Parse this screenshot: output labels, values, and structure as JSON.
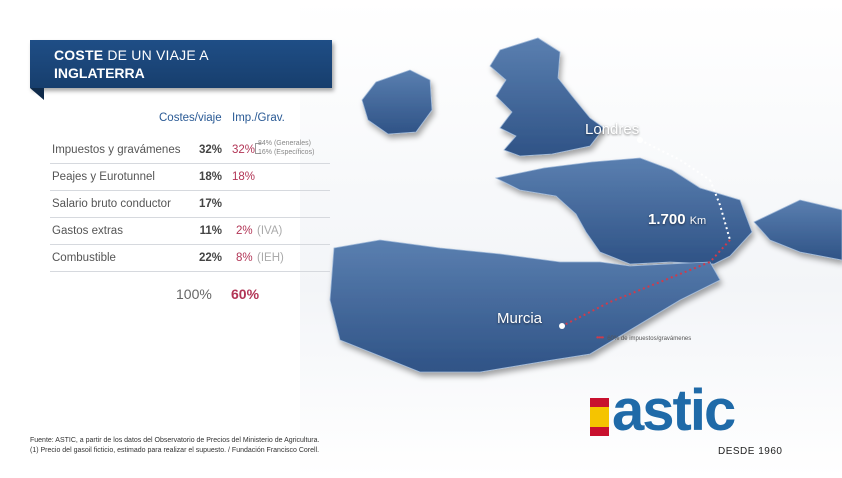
{
  "title": {
    "line1_bold": "COSTE",
    "line1_rest": " DE UN VIAJE A",
    "line2": "INGLATERRA"
  },
  "columns": {
    "cost_header": "Costes/viaje",
    "tax_header": "Imp./Grav."
  },
  "rows": [
    {
      "label": "Impuestos y gravámenes",
      "cost": "32%",
      "tax": "32%",
      "note": ""
    },
    {
      "label": "Peajes y Eurotunnel",
      "cost": "18%",
      "tax": "18%",
      "note": ""
    },
    {
      "label": "Salario bruto conductor",
      "cost": "17%",
      "tax": "",
      "note": ""
    },
    {
      "label": "Gastos extras",
      "cost": "11%",
      "tax": "2%",
      "note": "(IVA)"
    },
    {
      "label": "Combustible",
      "cost": "22%",
      "tax": "8%",
      "note": "(IEH)"
    }
  ],
  "split": {
    "line1": "84% (Generales)",
    "line2": "16% (Específicos)"
  },
  "totals": {
    "cost": "100%",
    "tax": "60%"
  },
  "map": {
    "origin": "Londres",
    "destination": "Murcia",
    "distance_value": "1.700",
    "distance_unit": "Km",
    "legend": "60% de impuestos/gravámenes"
  },
  "source": {
    "line1": "Fuente: ASTIC, a partir de los datos del Observatorio de Precios del Ministerio de Agricultura.",
    "line2": "(1) Precio del gasoil ficticio, estimado para realizar el supuesto. / Fundación Francisco Corell."
  },
  "logo": {
    "word": "astic",
    "tagline": "DESDE 1960"
  },
  "colors": {
    "banner": "#1f4e86",
    "accent_red": "#b23556",
    "header_blue": "#2a5a95",
    "logo_blue": "#1f6aa8"
  }
}
